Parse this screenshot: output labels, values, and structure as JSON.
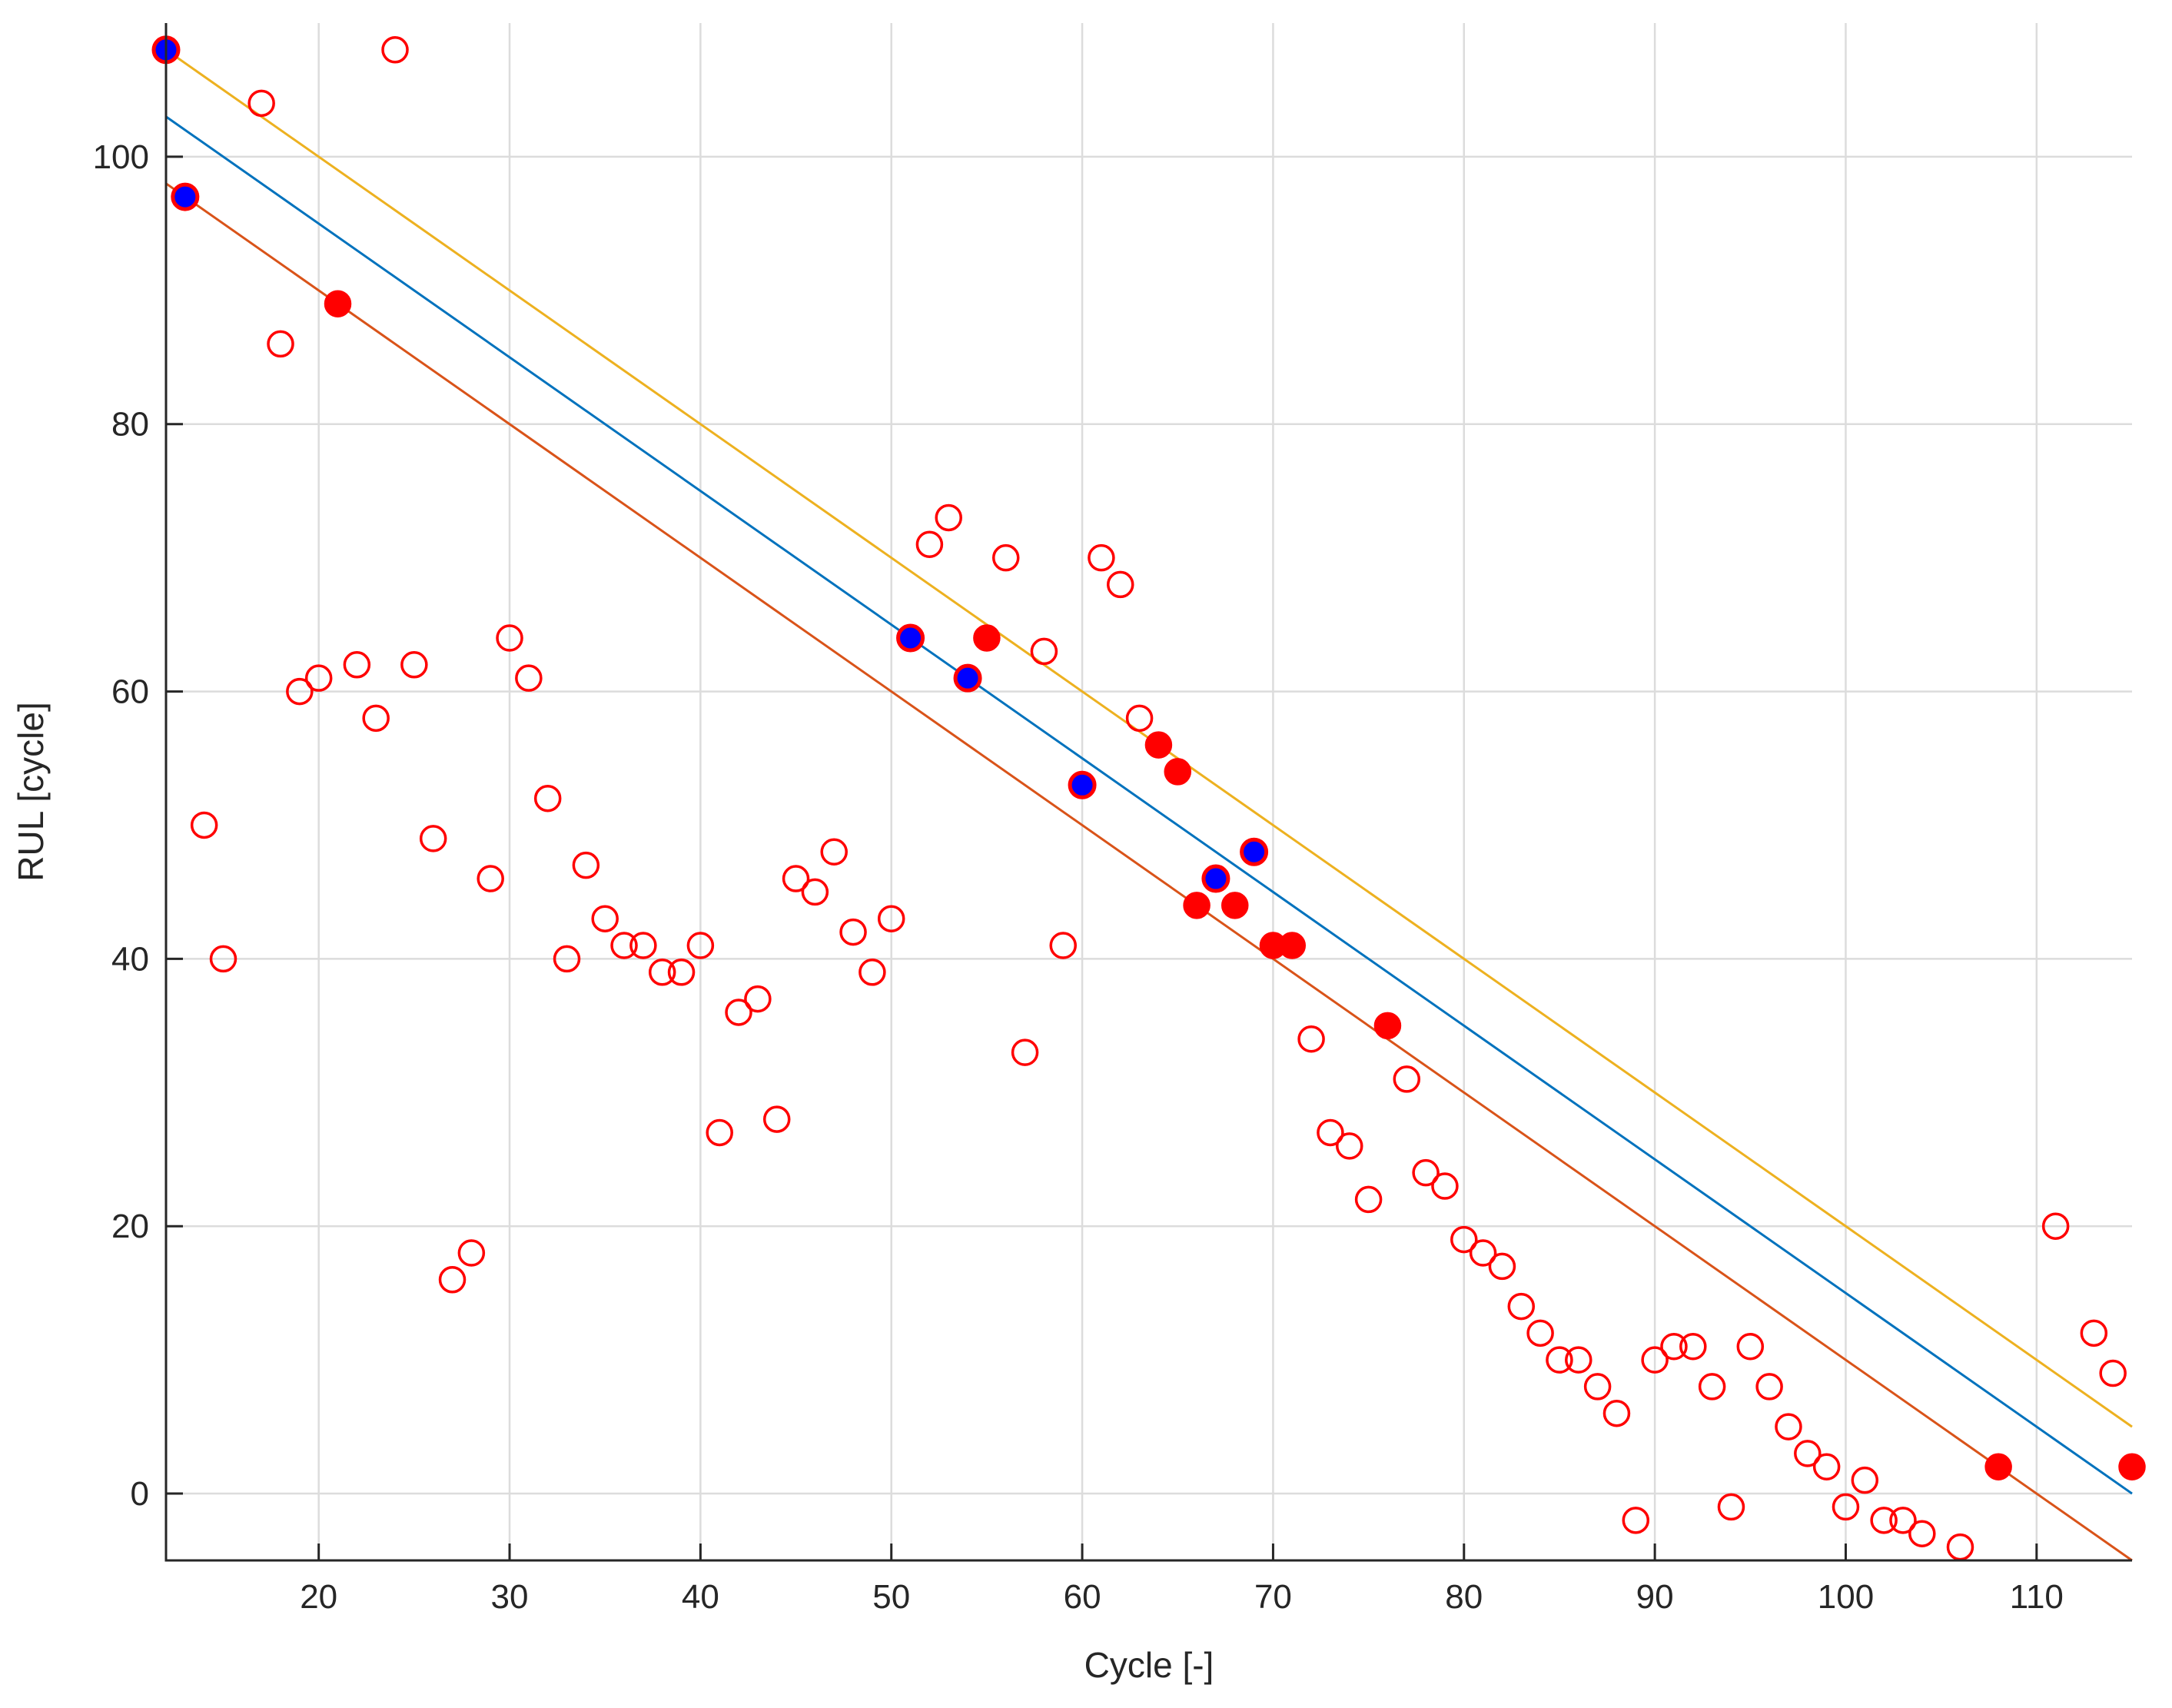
{
  "chart_data": {
    "type": "scatter",
    "title": "",
    "xlabel": "Cycle [-]",
    "ylabel": "RUL [cycle]",
    "xlim": [
      12,
      115
    ],
    "ylim": [
      -5,
      110
    ],
    "xticks": [
      20,
      30,
      40,
      50,
      60,
      70,
      80,
      90,
      100,
      110
    ],
    "yticks": [
      0,
      20,
      40,
      60,
      80,
      100
    ],
    "grid": true,
    "colors": {
      "axis": "#262626",
      "grid": "#dcdcdc",
      "upper_bound": "#EDB120",
      "true_rul": "#0072BD",
      "lower_bound": "#D95319",
      "marker_red": "#FF0000",
      "marker_blue": "#0000FF"
    },
    "lines": [
      {
        "name": "upper-bound",
        "color": "#EDB120",
        "x": [
          12,
          115
        ],
        "y": [
          108,
          5
        ]
      },
      {
        "name": "true-rul",
        "color": "#0072BD",
        "x": [
          12,
          115
        ],
        "y": [
          103,
          0
        ]
      },
      {
        "name": "lower-bound",
        "color": "#D95319",
        "x": [
          12,
          115
        ],
        "y": [
          98,
          -5
        ]
      }
    ],
    "series": [
      {
        "name": "predictions-outside",
        "style": "open-red-circle",
        "points": [
          [
            14,
            50
          ],
          [
            15,
            40
          ],
          [
            17,
            104
          ],
          [
            18,
            86
          ],
          [
            19,
            60
          ],
          [
            20,
            61
          ],
          [
            22,
            62
          ],
          [
            23,
            58
          ],
          [
            24,
            108
          ],
          [
            25,
            62
          ],
          [
            26,
            49
          ],
          [
            27,
            16
          ],
          [
            28,
            18
          ],
          [
            29,
            46
          ],
          [
            30,
            64
          ],
          [
            31,
            61
          ],
          [
            32,
            52
          ],
          [
            33,
            40
          ],
          [
            34,
            47
          ],
          [
            35,
            43
          ],
          [
            36,
            41
          ],
          [
            37,
            41
          ],
          [
            38,
            39
          ],
          [
            39,
            39
          ],
          [
            40,
            41
          ],
          [
            41,
            27
          ],
          [
            42,
            36
          ],
          [
            43,
            37
          ],
          [
            44,
            28
          ],
          [
            45,
            46
          ],
          [
            46,
            45
          ],
          [
            47,
            48
          ],
          [
            48,
            42
          ],
          [
            49,
            39
          ],
          [
            50,
            43
          ],
          [
            52,
            71
          ],
          [
            53,
            73
          ],
          [
            56,
            70
          ],
          [
            57,
            33
          ],
          [
            58,
            63
          ],
          [
            59,
            41
          ],
          [
            61,
            70
          ],
          [
            62,
            68
          ],
          [
            63,
            58
          ],
          [
            72,
            34
          ],
          [
            73,
            27
          ],
          [
            74,
            26
          ],
          [
            75,
            22
          ],
          [
            77,
            31
          ],
          [
            78,
            24
          ],
          [
            79,
            23
          ],
          [
            80,
            19
          ],
          [
            81,
            18
          ],
          [
            82,
            17
          ],
          [
            83,
            14
          ],
          [
            84,
            12
          ],
          [
            85,
            10
          ],
          [
            86,
            10
          ],
          [
            87,
            8
          ],
          [
            88,
            6
          ],
          [
            89,
            -2
          ],
          [
            90,
            10
          ],
          [
            91,
            11
          ],
          [
            92,
            11
          ],
          [
            93,
            8
          ],
          [
            94,
            -1
          ],
          [
            95,
            11
          ],
          [
            96,
            8
          ],
          [
            97,
            5
          ],
          [
            98,
            3
          ],
          [
            99,
            2
          ],
          [
            100,
            -1
          ],
          [
            101,
            1
          ],
          [
            102,
            -2
          ],
          [
            103,
            -2
          ],
          [
            104,
            -3
          ],
          [
            106,
            -4
          ],
          [
            111,
            20
          ],
          [
            113,
            12
          ],
          [
            114,
            9
          ]
        ]
      },
      {
        "name": "predictions-inside",
        "style": "filled-red-circle",
        "points": [
          [
            21,
            89
          ],
          [
            55,
            64
          ],
          [
            64,
            56
          ],
          [
            65,
            54
          ],
          [
            66,
            44
          ],
          [
            68,
            44
          ],
          [
            70,
            41
          ],
          [
            71,
            41
          ],
          [
            76,
            35
          ],
          [
            108,
            2
          ],
          [
            115,
            2
          ]
        ]
      },
      {
        "name": "predictions-on-line",
        "style": "blue-circle-red-edge",
        "points": [
          [
            12,
            108
          ],
          [
            13,
            97
          ],
          [
            51,
            64
          ],
          [
            54,
            61
          ],
          [
            60,
            53
          ],
          [
            67,
            46
          ],
          [
            69,
            48
          ]
        ]
      }
    ]
  }
}
